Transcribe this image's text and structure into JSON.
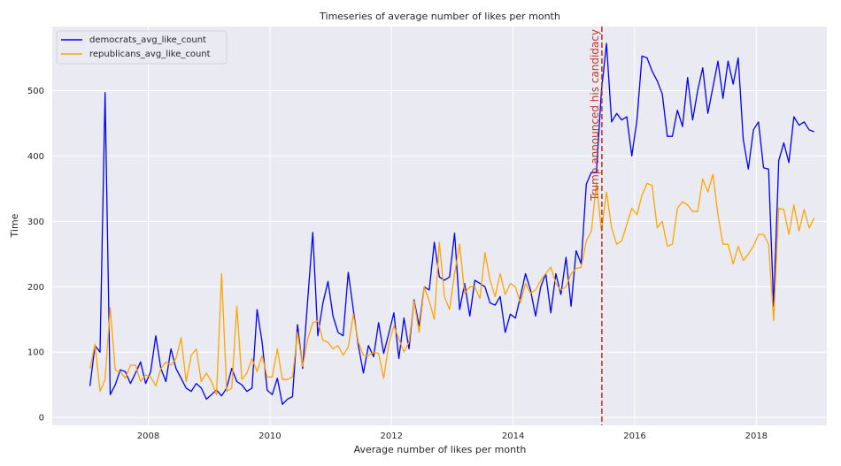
{
  "chart_data": {
    "type": "line",
    "title": "Timeseries of average number of likes per month",
    "xlabel": "Average number of likes per month",
    "ylabel": "Time",
    "xlim": [
      2006.42,
      2019.16
    ],
    "ylim": [
      -12,
      598
    ],
    "x_ticks": [
      2008,
      2010,
      2012,
      2014,
      2016,
      2018
    ],
    "y_ticks": [
      0,
      100,
      200,
      300,
      400,
      500
    ],
    "grid": true,
    "legend_position": "top-left",
    "vline": {
      "x": 2015.46,
      "label": "Trump announced his candidacy",
      "color": "#c0392b"
    },
    "x_start": 2007.04,
    "x_step": 0.0833,
    "series": [
      {
        "name": "democrats_avg_like_count",
        "color": "#0000ff",
        "values": [
          48,
          110,
          100,
          497,
          35,
          50,
          73,
          70,
          52,
          68,
          85,
          52,
          70,
          125,
          75,
          55,
          105,
          75,
          60,
          45,
          40,
          52,
          45,
          28,
          35,
          42,
          33,
          45,
          75,
          55,
          50,
          40,
          45,
          165,
          115,
          42,
          35,
          60,
          20,
          28,
          32,
          142,
          75,
          180,
          283,
          125,
          175,
          208,
          155,
          130,
          125,
          222,
          165,
          110,
          68,
          110,
          93,
          145,
          98,
          128,
          160,
          90,
          152,
          105,
          180,
          140,
          200,
          195,
          268,
          215,
          210,
          215,
          282,
          165,
          205,
          155,
          210,
          205,
          200,
          175,
          172,
          185,
          130,
          158,
          152,
          185,
          220,
          195,
          155,
          200,
          220,
          160,
          220,
          188,
          245,
          170,
          255,
          235,
          357,
          375,
          375,
          500,
          572,
          452,
          465,
          455,
          460,
          400,
          455,
          553,
          550,
          530,
          515,
          495,
          430,
          430,
          470,
          445,
          520,
          455,
          500,
          535,
          465,
          505,
          545,
          488,
          545,
          510,
          550,
          425,
          380,
          440,
          452,
          382,
          380,
          170,
          393,
          420,
          390,
          460,
          447,
          452,
          440,
          437
        ]
      },
      {
        "name": "republicans_avg_like_count",
        "color": "#ffa500",
        "values": [
          75,
          112,
          40,
          58,
          168,
          72,
          70,
          60,
          80,
          80,
          55,
          65,
          62,
          48,
          75,
          85,
          80,
          90,
          122,
          55,
          95,
          105,
          55,
          68,
          55,
          35,
          220,
          40,
          45,
          170,
          58,
          68,
          90,
          70,
          95,
          62,
          62,
          105,
          58,
          58,
          62,
          130,
          78,
          120,
          145,
          148,
          118,
          115,
          105,
          110,
          95,
          108,
          158,
          115,
          95,
          95,
          100,
          98,
          60,
          112,
          140,
          120,
          100,
          115,
          178,
          130,
          200,
          178,
          150,
          268,
          185,
          165,
          220,
          265,
          190,
          200,
          200,
          182,
          252,
          210,
          185,
          220,
          188,
          205,
          200,
          175,
          205,
          190,
          195,
          210,
          220,
          230,
          205,
          195,
          200,
          220,
          228,
          230,
          270,
          285,
          358,
          285,
          345,
          290,
          265,
          270,
          295,
          320,
          310,
          340,
          358,
          355,
          290,
          300,
          262,
          265,
          320,
          330,
          325,
          315,
          315,
          365,
          345,
          372,
          310,
          265,
          265,
          235,
          262,
          240,
          250,
          262,
          280,
          280,
          265,
          148,
          320,
          318,
          280,
          325,
          285,
          318,
          290,
          305
        ]
      }
    ]
  }
}
